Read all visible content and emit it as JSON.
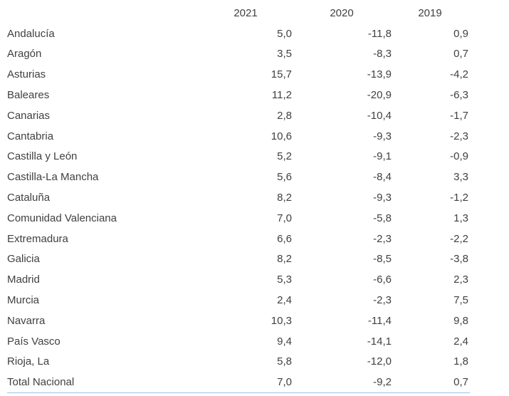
{
  "page": {
    "background_color": "#ffffff",
    "text_color": "#404040",
    "table_bottom_border_color": "#9dc3e6",
    "number_format": "spanish-comma-decimal"
  },
  "chart_data": {
    "type": "table",
    "title": "",
    "columns": [
      "2021",
      "2020",
      "2019"
    ],
    "region_column_header": "",
    "rows": [
      {
        "name": "Andalucía",
        "values": [
          "5,0",
          "-11,8",
          "0,9"
        ]
      },
      {
        "name": "Aragón",
        "values": [
          "3,5",
          "-8,3",
          "0,7"
        ]
      },
      {
        "name": "Asturias",
        "values": [
          "15,7",
          "-13,9",
          "-4,2"
        ]
      },
      {
        "name": "Baleares",
        "values": [
          "11,2",
          "-20,9",
          "-6,3"
        ]
      },
      {
        "name": "Canarias",
        "values": [
          "2,8",
          "-10,4",
          "-1,7"
        ]
      },
      {
        "name": "Cantabria",
        "values": [
          "10,6",
          "-9,3",
          "-2,3"
        ]
      },
      {
        "name": "Castilla y León",
        "values": [
          "5,2",
          "-9,1",
          "-0,9"
        ]
      },
      {
        "name": "Castilla-La Mancha",
        "values": [
          "5,6",
          "-8,4",
          "3,3"
        ]
      },
      {
        "name": "Cataluña",
        "values": [
          "8,2",
          "-9,3",
          "-1,2"
        ]
      },
      {
        "name": "Comunidad Valenciana",
        "values": [
          "7,0",
          "-5,8",
          "1,3"
        ]
      },
      {
        "name": "Extremadura",
        "values": [
          "6,6",
          "-2,3",
          "-2,2"
        ]
      },
      {
        "name": "Galicia",
        "values": [
          "8,2",
          "-8,5",
          "-3,8"
        ]
      },
      {
        "name": "Madrid",
        "values": [
          "5,3",
          "-6,6",
          "2,3"
        ]
      },
      {
        "name": "Murcia",
        "values": [
          "2,4",
          "-2,3",
          "7,5"
        ]
      },
      {
        "name": "Navarra",
        "values": [
          "10,3",
          "-11,4",
          "9,8"
        ]
      },
      {
        "name": "País Vasco",
        "values": [
          "9,4",
          "-14,1",
          "2,4"
        ]
      },
      {
        "name": "Rioja, La",
        "values": [
          "5,8",
          "-12,0",
          "1,8"
        ]
      },
      {
        "name": "Total Nacional",
        "values": [
          "7,0",
          "-9,2",
          "0,7"
        ]
      }
    ]
  }
}
